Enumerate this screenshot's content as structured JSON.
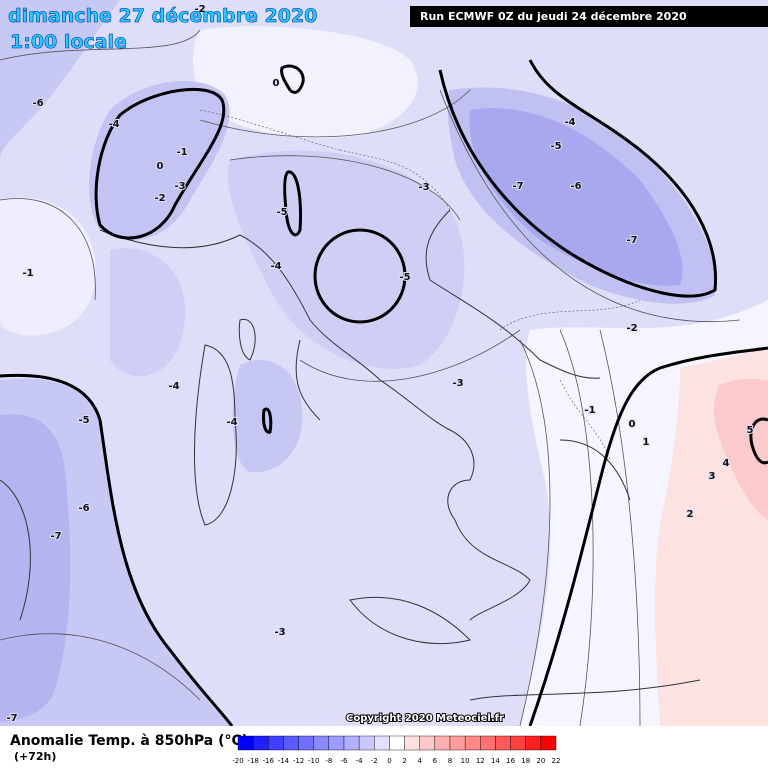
{
  "header": {
    "title": "dimanche 27 décembre 2020",
    "subtitle": "1:00 locale",
    "run": "Run ECMWF 0Z du jeudi 24 décembre 2020"
  },
  "map": {
    "contour_labels": [
      -2,
      0,
      -6,
      -4,
      -1,
      0,
      -3,
      -2,
      -5,
      -1,
      -4,
      -5,
      -3,
      -4,
      -5,
      -7,
      -6,
      -7,
      -2,
      -3,
      -4,
      -1,
      0,
      1,
      -4,
      -5,
      -6,
      -7,
      5,
      4,
      3,
      2,
      -3,
      -7
    ]
  },
  "legend": {
    "title": "Anomalie Temp. à 850hPa (°C)",
    "lead": "(+72h)",
    "ticks": [
      -20,
      -18,
      -16,
      -14,
      -12,
      -10,
      -8,
      -6,
      -4,
      -2,
      0,
      2,
      4,
      6,
      8,
      10,
      12,
      14,
      16,
      18,
      20,
      22
    ],
    "colors": [
      "#0000ff",
      "#2020ff",
      "#4040ff",
      "#5a5aff",
      "#7070ff",
      "#8888ff",
      "#9c9cff",
      "#b0b0ff",
      "#c8c8ff",
      "#e0e0ff",
      "#ffffff",
      "#ffe0e0",
      "#ffc8c8",
      "#ffb0b0",
      "#ff9c9c",
      "#ff8888",
      "#ff7070",
      "#ff5a5a",
      "#ff4040",
      "#ff2020",
      "#ff0000"
    ]
  },
  "footer": {
    "copyright": "Copyright 2020 Meteociel.fr"
  }
}
